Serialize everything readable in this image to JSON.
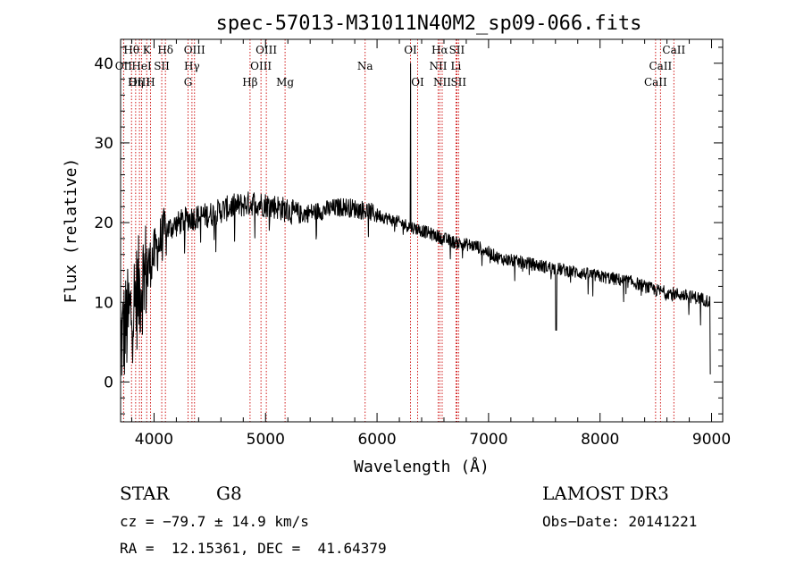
{
  "chart_data": {
    "type": "line",
    "title": "spec-57013-M31011N40M2_sp09-066.fits",
    "xlabel": "Wavelength (Å)",
    "ylabel": "Flux (relative)",
    "xlim": [
      3700,
      9100
    ],
    "ylim": [
      -5,
      43
    ],
    "x_ticks": [
      4000,
      5000,
      6000,
      7000,
      8000,
      9000
    ],
    "y_ticks": [
      0,
      10,
      20,
      30,
      40
    ],
    "grid": false,
    "continuum_points": [
      {
        "x": 3700,
        "y": 5
      },
      {
        "x": 3800,
        "y": 9
      },
      {
        "x": 3900,
        "y": 13
      },
      {
        "x": 4000,
        "y": 16
      },
      {
        "x": 4100,
        "y": 19
      },
      {
        "x": 4300,
        "y": 20.5
      },
      {
        "x": 4500,
        "y": 21
      },
      {
        "x": 4700,
        "y": 22
      },
      {
        "x": 4900,
        "y": 22.5
      },
      {
        "x": 5100,
        "y": 22
      },
      {
        "x": 5300,
        "y": 21
      },
      {
        "x": 5500,
        "y": 21.5
      },
      {
        "x": 5700,
        "y": 22
      },
      {
        "x": 5900,
        "y": 21.5
      },
      {
        "x": 6100,
        "y": 20.5
      },
      {
        "x": 6300,
        "y": 19.5
      },
      {
        "x": 6500,
        "y": 18.5
      },
      {
        "x": 6700,
        "y": 17.5
      },
      {
        "x": 6900,
        "y": 17
      },
      {
        "x": 7100,
        "y": 15.5
      },
      {
        "x": 7300,
        "y": 15
      },
      {
        "x": 7500,
        "y": 14.5
      },
      {
        "x": 7700,
        "y": 14
      },
      {
        "x": 7900,
        "y": 13.5
      },
      {
        "x": 8100,
        "y": 13
      },
      {
        "x": 8300,
        "y": 12.5
      },
      {
        "x": 8500,
        "y": 11.5
      },
      {
        "x": 8700,
        "y": 11
      },
      {
        "x": 8900,
        "y": 10.5
      },
      {
        "x": 9000,
        "y": 10
      }
    ],
    "features": [
      {
        "x": 6300,
        "y": 40,
        "note": "emission spike"
      },
      {
        "x": 7605,
        "y": 6.5,
        "note": "absorption"
      },
      {
        "x": 8995,
        "y": 1,
        "note": "drop at end"
      }
    ],
    "spectral_lines": [
      {
        "label": "Hθ",
        "x": 3798,
        "row": 0
      },
      {
        "label": "OII",
        "x": 3727,
        "row": 1
      },
      {
        "label": "OIII",
        "x": 3869,
        "row": 2
      },
      {
        "label": "K",
        "x": 3934,
        "row": 0
      },
      {
        "label": "HeI",
        "x": 3889,
        "row": 1
      },
      {
        "label": "Hη",
        "x": 3835,
        "row": 2
      },
      {
        "label": "SII",
        "x": 4069,
        "row": 1
      },
      {
        "label": "H",
        "x": 3968,
        "row": 2
      },
      {
        "label": "Hδ",
        "x": 4102,
        "row": 0
      },
      {
        "label": "OIII",
        "x": 4363,
        "row": 0
      },
      {
        "label": "Hγ",
        "x": 4340,
        "row": 1
      },
      {
        "label": "G",
        "x": 4305,
        "row": 2
      },
      {
        "label": "OIII",
        "x": 5007,
        "row": 0
      },
      {
        "label": "OIII",
        "x": 4959,
        "row": 1
      },
      {
        "label": "Hβ",
        "x": 4861,
        "row": 2
      },
      {
        "label": "Mg",
        "x": 5175,
        "row": 2
      },
      {
        "label": "Na",
        "x": 5893,
        "row": 1
      },
      {
        "label": "OI",
        "x": 6300,
        "row": 0
      },
      {
        "label": "OI",
        "x": 6364,
        "row": 2
      },
      {
        "label": "Hα",
        "x": 6563,
        "row": 0
      },
      {
        "label": "SII",
        "x": 6716,
        "row": 0
      },
      {
        "label": "NII",
        "x": 6548,
        "row": 1
      },
      {
        "label": "Li",
        "x": 6708,
        "row": 1
      },
      {
        "label": "NII",
        "x": 6584,
        "row": 2
      },
      {
        "label": "SII",
        "x": 6731,
        "row": 2
      },
      {
        "label": "CaII",
        "x": 8662,
        "row": 0
      },
      {
        "label": "CaII",
        "x": 8542,
        "row": 1
      },
      {
        "label": "CaII",
        "x": 8498,
        "row": 2
      }
    ]
  },
  "info": {
    "object_class": "STAR",
    "subclass": "G8",
    "survey": "LAMOST DR3",
    "velocity": "cz = −79.7 ± 14.9 km/s",
    "obs_date": "Obs−Date: 20141221",
    "coords": "RA =  12.15361, DEC =  41.64379"
  },
  "colors": {
    "spectrum": "#000000",
    "lines": "#cc0000",
    "axes": "#000000"
  }
}
